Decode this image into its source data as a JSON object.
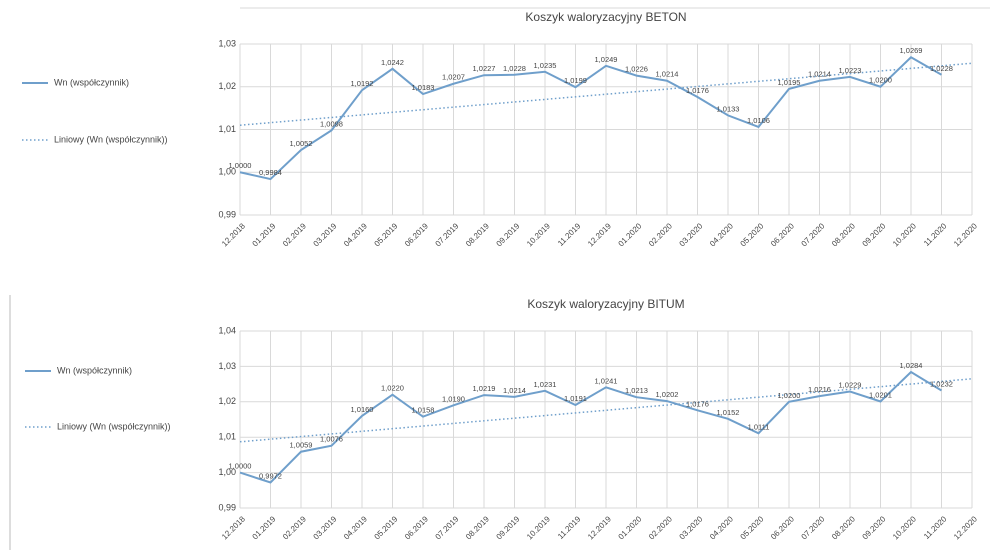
{
  "chart_data": [
    {
      "type": "line",
      "title": "Koszyk waloryzacyjny BETON",
      "categories": [
        "12.2018",
        "01.2019",
        "02.2019",
        "03.2019",
        "04.2019",
        "05.2019",
        "06.2019",
        "07.2019",
        "08.2019",
        "09.2019",
        "10.2019",
        "11.2019",
        "12.2019",
        "01.2020",
        "02.2020",
        "03.2020",
        "04.2020",
        "05.2020",
        "06.2020",
        "07.2020",
        "08.2020",
        "09.2020",
        "10.2020",
        "11.2020",
        "12.2020"
      ],
      "series": [
        {
          "name": "Wn (współczynnik)",
          "color": "#6f9fcb",
          "values": [
            1.0,
            0.9984,
            1.0052,
            1.0098,
            1.0192,
            1.0242,
            1.0183,
            1.0207,
            1.0227,
            1.0228,
            1.0235,
            1.0199,
            1.0249,
            1.0226,
            1.0214,
            1.0176,
            1.0133,
            1.0106,
            1.0195,
            1.0214,
            1.0223,
            1.02,
            1.0269,
            1.0228,
            null
          ],
          "value_labels": [
            "1,0000",
            "0,9984",
            "1,0052",
            "1,0098",
            "1,0192",
            "1,0242",
            "1,0183",
            "1,0207",
            "1,0227",
            "1,0228",
            "1,0235",
            "1,0199",
            "1,0249",
            "1,0226",
            "1,0214",
            "1,0176",
            "1,0133",
            "1,0106",
            "1,0195",
            "1,0214",
            "1,0223",
            "1,0200",
            "1,0269",
            "1,0228",
            null
          ]
        }
      ],
      "trendline": {
        "name": "Liniowy (Wn (współczynnik))",
        "color": "#6f9fcb",
        "style": "dotted",
        "start": 1.011,
        "end": 1.0255
      },
      "ylim": [
        0.99,
        1.03
      ],
      "yticks": [
        {
          "value": 0.99,
          "label": "0,99"
        },
        {
          "value": 1.0,
          "label": "1,00"
        },
        {
          "value": 1.01,
          "label": "1,01"
        },
        {
          "value": 1.02,
          "label": "1,02"
        },
        {
          "value": 1.03,
          "label": "1,03"
        }
      ],
      "grid": true,
      "legend": "left"
    },
    {
      "type": "line",
      "title": "Koszyk waloryzacyjny BITUM",
      "categories": [
        "12.2018",
        "01.2019",
        "02.2019",
        "03.2019",
        "04.2019",
        "05.2019",
        "06.2019",
        "07.2019",
        "08.2019",
        "09.2019",
        "10.2019",
        "11.2019",
        "12.2019",
        "01.2020",
        "02.2020",
        "03.2020",
        "04.2020",
        "05.2020",
        "06.2020",
        "07.2020",
        "08.2020",
        "09.2020",
        "10.2020",
        "11.2020",
        "12.2020"
      ],
      "series": [
        {
          "name": "Wn (współczynnik)",
          "color": "#6f9fcb",
          "values": [
            1.0,
            0.9972,
            1.0059,
            1.0076,
            1.016,
            1.022,
            1.0158,
            1.019,
            1.0219,
            1.0214,
            1.0231,
            1.0191,
            1.0241,
            1.0213,
            1.0202,
            1.0176,
            1.0152,
            1.0111,
            1.02,
            1.0216,
            1.0229,
            1.0201,
            1.0284,
            1.0232,
            null
          ],
          "value_labels": [
            "1,0000",
            "0,9972",
            "1,0059",
            "1,0076",
            "1,0160",
            "1,0220",
            "1,0158",
            "1,0190",
            "1,0219",
            "1,0214",
            "1,0231",
            "1,0191",
            "1,0241",
            "1,0213",
            "1,0202",
            "1,0176",
            "1,0152",
            "1,0111",
            "1,0200",
            "1,0216",
            "1,0229",
            "1,0201",
            "1,0284",
            "1,0232",
            null
          ]
        }
      ],
      "trendline": {
        "name": "Liniowy (Wn (współczynnik))",
        "color": "#6f9fcb",
        "style": "dotted",
        "start": 1.0087,
        "end": 1.0265
      },
      "ylim": [
        0.99,
        1.04
      ],
      "yticks": [
        {
          "value": 0.99,
          "label": "0,99"
        },
        {
          "value": 1.0,
          "label": "1,00"
        },
        {
          "value": 1.01,
          "label": "1,01"
        },
        {
          "value": 1.02,
          "label": "1,02"
        },
        {
          "value": 1.03,
          "label": "1,03"
        },
        {
          "value": 1.04,
          "label": "1,04"
        }
      ],
      "grid": true,
      "legend": "left"
    }
  ]
}
